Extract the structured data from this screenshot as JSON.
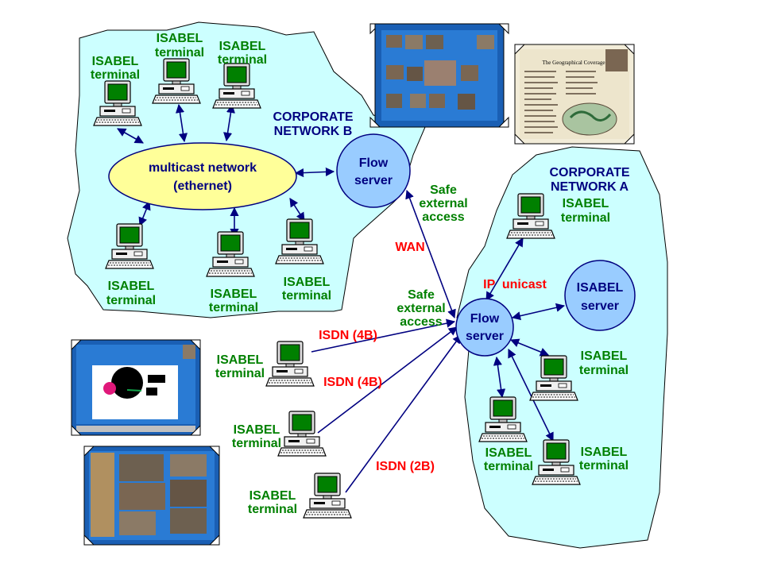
{
  "networks": {
    "corporate_b": {
      "line1": "CORPORATE",
      "line2": "NETWORK B",
      "color": "#000080"
    },
    "corporate_a": {
      "line1": "CORPORATE",
      "line2": "NETWORK A",
      "color": "#000080"
    }
  },
  "multicast": {
    "line1": "multicast network",
    "line2": "(ethernet)"
  },
  "flow_server_b": {
    "line1": "Flow",
    "line2": "server"
  },
  "flow_server_a": {
    "line1": "Flow",
    "line2": "server"
  },
  "isabel_server": {
    "line1": "ISABEL",
    "line2": "server"
  },
  "terminal": {
    "line1": "ISABEL",
    "line2": "terminal"
  },
  "links": {
    "safe_external_b": {
      "line1": "Safe",
      "line2": "external",
      "line3": "access"
    },
    "safe_external_a": {
      "line1": "Safe",
      "line2": "external",
      "line3": "access"
    },
    "wan": "WAN",
    "ip_unicast": "IP  unicast",
    "isdn_1": "ISDN (4B)",
    "isdn_2": "ISDN (4B)",
    "isdn_3": "ISDN (2B)"
  },
  "screenshots": {
    "geo_title": "The Geographical Coverage"
  },
  "colors": {
    "terminal_label": "#008000",
    "network_label": "#000080",
    "isdn_label": "#ff0000",
    "link": "#000080",
    "cloud_fill": "#ccffff",
    "server_fill": "#99ccff",
    "ellipse_fill": "#ffff99"
  }
}
